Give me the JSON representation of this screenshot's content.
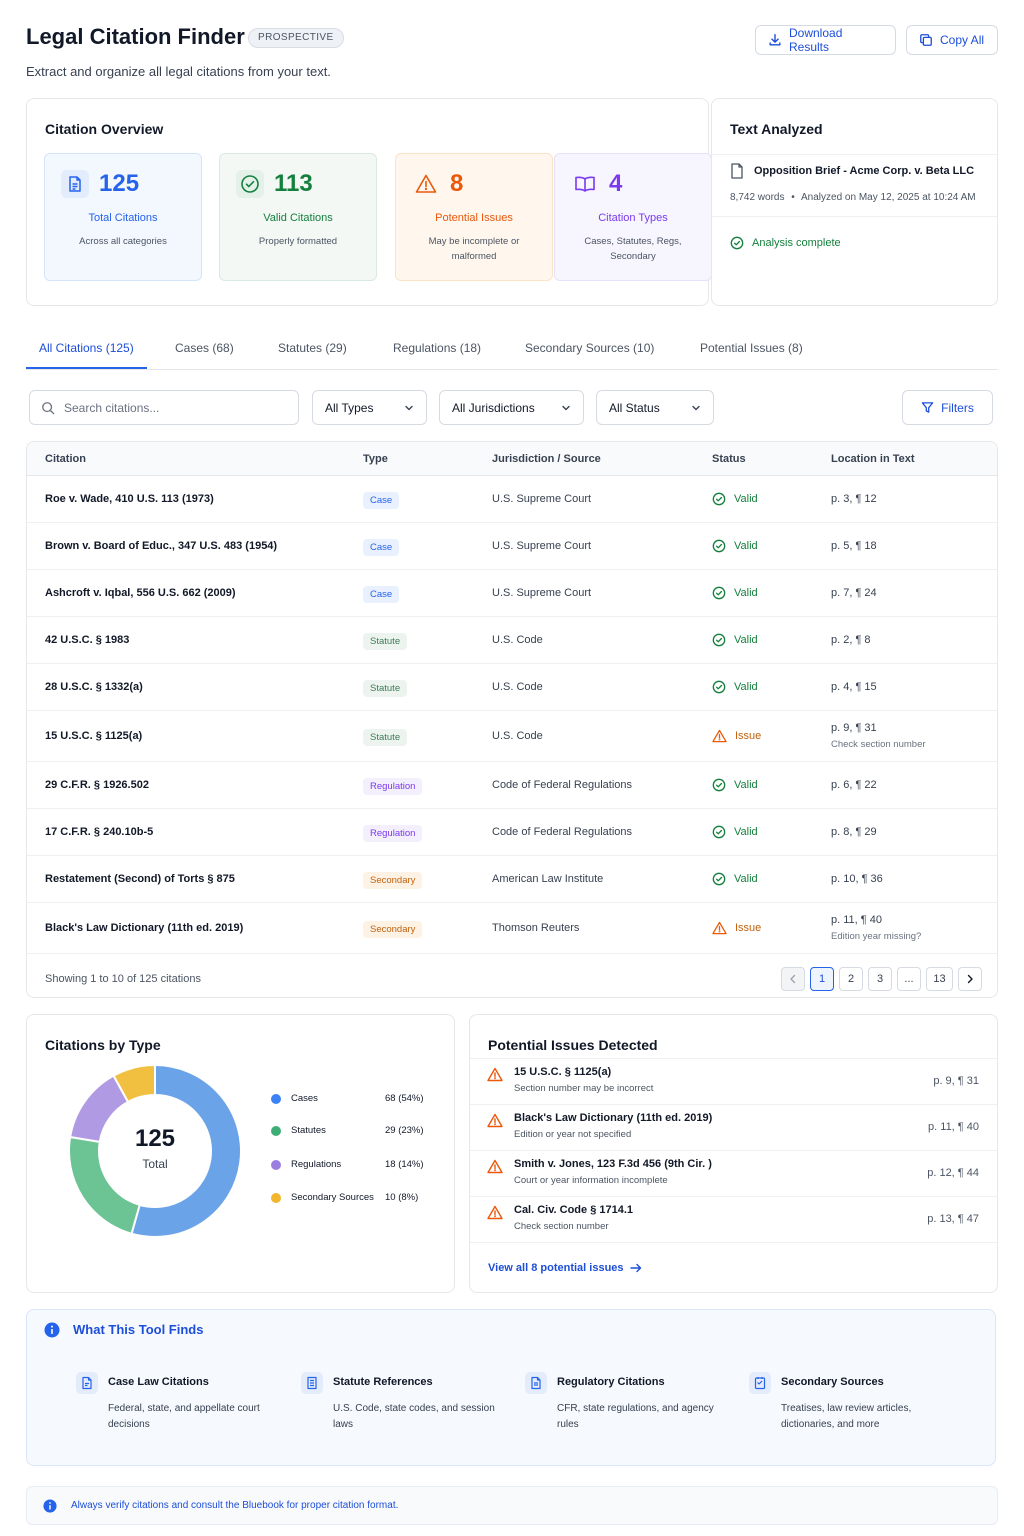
{
  "header": {
    "title": "Legal Citation Finder",
    "badge": "PROSPECTIVE",
    "subtitle": "Extract and organize all legal citations from your text.",
    "download_label": "Download Results",
    "copy_label": "Copy All"
  },
  "overview": {
    "title": "Citation Overview",
    "stats": [
      {
        "value": "125",
        "label": "Total Citations",
        "desc": "Across all categories",
        "color": "#2563eb"
      },
      {
        "value": "113",
        "label": "Valid Citations",
        "desc": "Properly formatted",
        "color": "#15803d"
      },
      {
        "value": "8",
        "label": "Potential Issues",
        "desc": "May be incomplete or malformed",
        "color": "#ea580c"
      },
      {
        "value": "4",
        "label": "Citation Types",
        "desc": "Cases, Statutes, Regs, Secondary",
        "color": "#7c3aed"
      }
    ]
  },
  "analyzed": {
    "title": "Text Analyzed",
    "doc_name": "Opposition Brief - Acme Corp. v. Beta LLC",
    "words": "8,742 words",
    "analyzed_on": "Analyzed on May 12, 2025 at 10:24 AM",
    "status": "Analysis complete"
  },
  "tabs": [
    {
      "label": "All Citations (125)",
      "active": true
    },
    {
      "label": "Cases (68)"
    },
    {
      "label": "Statutes (29)"
    },
    {
      "label": "Regulations (18)"
    },
    {
      "label": "Secondary Sources (10)"
    },
    {
      "label": "Potential Issues (8)"
    }
  ],
  "filters": {
    "search_placeholder": "Search citations...",
    "type": "All Types",
    "jurisdiction": "All Jurisdictions",
    "status": "All Status",
    "filters_label": "Filters"
  },
  "table": {
    "columns": [
      "Citation",
      "Type",
      "Jurisdiction / Source",
      "Status",
      "Location in Text"
    ],
    "rows": [
      {
        "citation": "Roe v. Wade, 410 U.S. 113 (1973)",
        "type": "Case",
        "source": "U.S. Supreme Court",
        "status": "Valid",
        "location": "p. 3, ¶ 12",
        "note": ""
      },
      {
        "citation": "Brown v. Board of Educ., 347 U.S. 483 (1954)",
        "type": "Case",
        "source": "U.S. Supreme Court",
        "status": "Valid",
        "location": "p. 5, ¶ 18",
        "note": ""
      },
      {
        "citation": "Ashcroft v. Iqbal, 556 U.S. 662 (2009)",
        "type": "Case",
        "source": "U.S. Supreme Court",
        "status": "Valid",
        "location": "p. 7, ¶ 24",
        "note": ""
      },
      {
        "citation": "42 U.S.C. § 1983",
        "type": "Statute",
        "source": "U.S. Code",
        "status": "Valid",
        "location": "p. 2, ¶ 8",
        "note": ""
      },
      {
        "citation": "28 U.S.C. § 1332(a)",
        "type": "Statute",
        "source": "U.S. Code",
        "status": "Valid",
        "location": "p. 4, ¶ 15",
        "note": ""
      },
      {
        "citation": "15 U.S.C. § 1125(a)",
        "type": "Statute",
        "source": "U.S. Code",
        "status": "Issue",
        "location": "p. 9, ¶ 31",
        "note": "Check section number"
      },
      {
        "citation": "29 C.F.R. § 1926.502",
        "type": "Regulation",
        "source": "Code of Federal Regulations",
        "status": "Valid",
        "location": "p. 6, ¶ 22",
        "note": ""
      },
      {
        "citation": "17 C.F.R. § 240.10b-5",
        "type": "Regulation",
        "source": "Code of Federal Regulations",
        "status": "Valid",
        "location": "p. 8, ¶ 29",
        "note": ""
      },
      {
        "citation": "Restatement (Second) of Torts § 875",
        "type": "Secondary",
        "source": "American Law Institute",
        "status": "Valid",
        "location": "p. 10, ¶ 36",
        "note": ""
      },
      {
        "citation": "Black's Law Dictionary (11th ed. 2019)",
        "type": "Secondary",
        "source": "Thomson Reuters",
        "status": "Issue",
        "location": "p. 11, ¶ 40",
        "note": "Edition year missing?"
      }
    ],
    "showing": "Showing 1 to 10 of 125 citations",
    "pages": [
      "1",
      "2",
      "3",
      "...",
      "13"
    ]
  },
  "by_type": {
    "title": "Citations by Type",
    "total": "125",
    "total_label": "Total"
  },
  "chart_data": {
    "type": "pie",
    "categories": [
      "Cases",
      "Statutes",
      "Regulations",
      "Secondary Sources"
    ],
    "values": [
      68,
      29,
      18,
      10
    ],
    "labels": [
      "68 (54%)",
      "29 (23%)",
      "18 (14%)",
      "10 (8%)"
    ],
    "colors": [
      "#6ba3e8",
      "#6cc494",
      "#b09ae3",
      "#f2c041"
    ],
    "title": "Citations by Type"
  },
  "issues": {
    "title": "Potential Issues Detected",
    "items": [
      {
        "citation": "15 U.S.C. § 1125(a)",
        "desc": "Section number may be incorrect",
        "location": "p. 9, ¶ 31"
      },
      {
        "citation": "Black's Law Dictionary (11th ed. 2019)",
        "desc": "Edition or year not specified",
        "location": "p. 11, ¶ 40"
      },
      {
        "citation": "Smith v. Jones, 123 F.3d 456 (9th Cir. )",
        "desc": "Court or year information incomplete",
        "location": "p. 12, ¶ 44"
      },
      {
        "citation": "Cal. Civ. Code § 1714.1",
        "desc": "Check section number",
        "location": "p. 13, ¶ 47"
      }
    ],
    "view_all": "View all 8 potential issues"
  },
  "finds": {
    "title": "What This Tool Finds",
    "items": [
      {
        "title": "Case Law Citations",
        "desc": "Federal, state, and appellate court decisions"
      },
      {
        "title": "Statute References",
        "desc": "U.S. Code, state codes, and session laws"
      },
      {
        "title": "Regulatory Citations",
        "desc": "CFR, state regulations, and agency rules"
      },
      {
        "title": "Secondary Sources",
        "desc": "Treatises, law review articles, dictionaries, and more"
      }
    ]
  },
  "note": "Always verify citations and consult the Bluebook for proper citation format."
}
